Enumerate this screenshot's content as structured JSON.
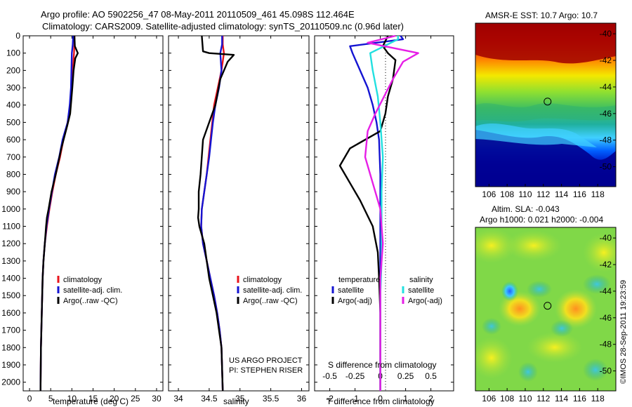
{
  "header": {
    "line1": "Argo profile: AO 5902256_47 08-May-2011 20110509_461 45.098S 112.464E",
    "line2": "Climatology: CARS2009. Satellite-adjusted climatology: synTS_20110509.nc (0.96d later)"
  },
  "side_stamp": "©IMOS 28-Sep-2011 19:23:59",
  "colors": {
    "red": "#e8141c",
    "blue": "#1414d2",
    "black": "#000000",
    "cyan": "#22e0e0",
    "magenta": "#e61ee6"
  },
  "depth_ticks": [
    0,
    100,
    200,
    300,
    400,
    500,
    600,
    700,
    800,
    900,
    1000,
    1100,
    1200,
    1300,
    1400,
    1500,
    1600,
    1700,
    1800,
    1900,
    2000
  ],
  "chart_data": [
    {
      "type": "line",
      "name": "temperature",
      "xlabel": "temperature (deg C)",
      "xticks": [
        0,
        5,
        10,
        15,
        20,
        25,
        30
      ],
      "xlim": [
        -1.5,
        31.5
      ],
      "ylim": [
        2050,
        0
      ],
      "legend": {
        "placement": "lower-left",
        "entries": [
          "climatology",
          "satellite-adj. clim.",
          "Argo(..raw -QC)"
        ]
      },
      "series": [
        {
          "name": "climatology",
          "color": "red",
          "x": [
            10.6,
            10.6,
            10.5,
            10.2,
            10.0,
            9.6,
            9.0,
            8.0,
            7.2,
            6.2,
            5.4,
            4.7,
            4.1,
            3.6,
            3.3,
            3.1,
            3.0,
            2.9,
            2.8,
            2.7,
            2.6
          ],
          "y": [
            0,
            50,
            100,
            200,
            300,
            400,
            500,
            600,
            700,
            800,
            900,
            1000,
            1100,
            1200,
            1300,
            1400,
            1500,
            1600,
            1700,
            1800,
            2050
          ]
        },
        {
          "name": "satellite-adj. clim.",
          "color": "blue",
          "x": [
            10.3,
            10.2,
            10.0,
            9.9,
            9.8,
            9.5,
            9.0,
            7.8,
            7.0,
            6.0,
            5.3,
            4.6,
            4.0,
            3.6,
            3.3,
            3.1,
            3.0,
            2.9,
            2.8,
            2.7,
            2.6
          ],
          "y": [
            0,
            50,
            100,
            200,
            300,
            400,
            500,
            600,
            700,
            800,
            900,
            1000,
            1100,
            1200,
            1300,
            1400,
            1500,
            1600,
            1700,
            1800,
            2050
          ]
        },
        {
          "name": "Argo(..raw -QC)",
          "color": "black",
          "x": [
            10.6,
            10.7,
            11.4,
            10.8,
            10.4,
            10.1,
            9.6,
            8.9,
            7.5,
            6.2,
            5.2,
            4.5,
            4.1,
            3.9,
            3.6,
            3.3,
            3.1,
            3.0,
            2.9,
            2.8,
            2.7,
            2.6
          ],
          "y": [
            0,
            60,
            100,
            130,
            200,
            300,
            450,
            520,
            650,
            800,
            900,
            1000,
            1050,
            1100,
            1200,
            1300,
            1400,
            1500,
            1600,
            1700,
            1800,
            2050
          ]
        }
      ]
    },
    {
      "type": "line",
      "name": "salinity",
      "xlabel": "salinity",
      "xticks": [
        34,
        34.5,
        35,
        35.5,
        36
      ],
      "xlim": [
        33.84,
        36.12
      ],
      "ylim": [
        2050,
        0
      ],
      "legend": {
        "placement": "lower-right",
        "entries": [
          "climatology",
          "satellite-adj. clim.",
          "Argo(..raw -QC)"
        ]
      },
      "annotation": [
        "US ARGO PROJECT",
        "PI: STEPHEN RISER"
      ],
      "series": [
        {
          "name": "climatology",
          "color": "red",
          "x": [
            34.72,
            34.72,
            34.74,
            34.7,
            34.64,
            34.58,
            34.55,
            34.52,
            34.49,
            34.46,
            34.42,
            34.38,
            34.37,
            34.4,
            34.46,
            34.52,
            34.58,
            34.63,
            34.67,
            34.7,
            34.72
          ],
          "y": [
            0,
            50,
            100,
            200,
            300,
            400,
            500,
            600,
            700,
            800,
            900,
            1000,
            1100,
            1200,
            1300,
            1400,
            1500,
            1600,
            1700,
            1800,
            2050
          ]
        },
        {
          "name": "satellite-adj. clim.",
          "color": "blue",
          "x": [
            34.71,
            34.71,
            34.68,
            34.7,
            34.66,
            34.6,
            34.56,
            34.53,
            34.5,
            34.46,
            34.42,
            34.38,
            34.37,
            34.4,
            34.46,
            34.52,
            34.58,
            34.63,
            34.67,
            34.7,
            34.72
          ],
          "y": [
            0,
            50,
            100,
            200,
            300,
            400,
            500,
            600,
            700,
            800,
            900,
            1000,
            1100,
            1200,
            1300,
            1400,
            1500,
            1600,
            1700,
            1800,
            2050
          ]
        },
        {
          "name": "Argo(..raw -QC)",
          "color": "black",
          "x": [
            34.38,
            34.4,
            34.5,
            34.9,
            34.8,
            34.68,
            34.6,
            34.5,
            34.4,
            34.36,
            34.33,
            34.33,
            34.32,
            34.34,
            34.42,
            34.5,
            34.56,
            34.62,
            34.66,
            34.7,
            34.72
          ],
          "y": [
            0,
            90,
            100,
            110,
            150,
            250,
            400,
            500,
            600,
            800,
            900,
            1000,
            1050,
            1100,
            1200,
            1400,
            1500,
            1600,
            1700,
            1800,
            2050
          ]
        }
      ]
    },
    {
      "type": "line",
      "name": "difference from climatology",
      "xlabel": "T difference from climatology",
      "xlabel_top": "S difference from climatology",
      "xticks": [
        -2,
        -1,
        0,
        1,
        2
      ],
      "xticks_top": [
        "-0.5",
        "-0.25",
        "0",
        "0.25",
        "0.5"
      ],
      "xlim": [
        -2.6,
        2.9
      ],
      "ylim": [
        2050,
        0
      ],
      "legend": {
        "placement": "bottom",
        "groups": [
          {
            "title": "temperature",
            "entries": [
              "satellite",
              "Argo(-adj)"
            ]
          },
          {
            "title": "salinity",
            "entries": [
              "satellite",
              "Argo(-adj)"
            ]
          }
        ]
      },
      "series": [
        {
          "name": "temperature satellite",
          "color": "blue",
          "x": [
            0.8,
            0.9,
            -1.2,
            -1.1,
            -0.8,
            -0.5,
            -0.3,
            -0.15,
            -0.05,
            0,
            0,
            0,
            0,
            0,
            0,
            0
          ],
          "y": [
            0,
            20,
            60,
            100,
            200,
            300,
            400,
            500,
            600,
            800,
            1000,
            1200,
            1400,
            1600,
            1800,
            2050
          ]
        },
        {
          "name": "temperature Argo(-adj)",
          "color": "black",
          "x": [
            0.3,
            0.1,
            0.3,
            0.6,
            0.5,
            0.3,
            0.2,
            0.0,
            -1.2,
            -1.6,
            -1.2,
            -0.8,
            -0.3,
            -0.1,
            -0.05,
            0,
            0,
            0
          ],
          "y": [
            0,
            60,
            100,
            140,
            250,
            350,
            450,
            550,
            650,
            750,
            850,
            950,
            1100,
            1250,
            1400,
            1600,
            1800,
            2050
          ]
        },
        {
          "name": "salinity satellite",
          "color": "cyan",
          "x": [
            0.7,
            0.7,
            -0.4,
            -0.3,
            -0.1,
            0,
            0.1,
            0.05,
            0.05,
            0.05,
            0,
            0,
            0
          ],
          "y": [
            0,
            20,
            100,
            200,
            350,
            500,
            700,
            900,
            1100,
            1300,
            1500,
            1800,
            2050
          ]
        },
        {
          "name": "salinity Argo(-adj)",
          "color": "magenta",
          "x": [
            0.6,
            -0.5,
            1.5,
            0.9,
            0.5,
            -0.2,
            -0.5,
            -0.6,
            -0.3,
            0.0,
            0.1,
            0.0,
            0.0,
            0.0,
            0.0
          ],
          "y": [
            0,
            40,
            100,
            150,
            250,
            450,
            550,
            700,
            850,
            1000,
            1200,
            1400,
            1600,
            1800,
            2050
          ]
        }
      ]
    },
    {
      "type": "heatmap",
      "title": "AMSR-E SST: 10.7 Argo: 10.7",
      "xticks": [
        106,
        108,
        110,
        112,
        114,
        116,
        118
      ],
      "yticks": [
        -40,
        -42,
        -44,
        -46,
        -48,
        -50
      ],
      "xlim": [
        104.5,
        120
      ],
      "ylim": [
        -51.5,
        -39.2
      ],
      "marker": {
        "lon": 112.464,
        "lat": -45.098
      }
    },
    {
      "type": "heatmap",
      "title": "Altim. SLA: -0.043",
      "subtitle": "Argo h1000: 0.021 h2000: -0.004",
      "xticks": [
        106,
        108,
        110,
        112,
        114,
        116,
        118
      ],
      "yticks": [
        -40,
        -42,
        -44,
        -46,
        -48,
        -50
      ],
      "xlim": [
        104.5,
        120
      ],
      "ylim": [
        -51.5,
        -39.2
      ],
      "marker": {
        "lon": 112.464,
        "lat": -45.098
      }
    }
  ]
}
